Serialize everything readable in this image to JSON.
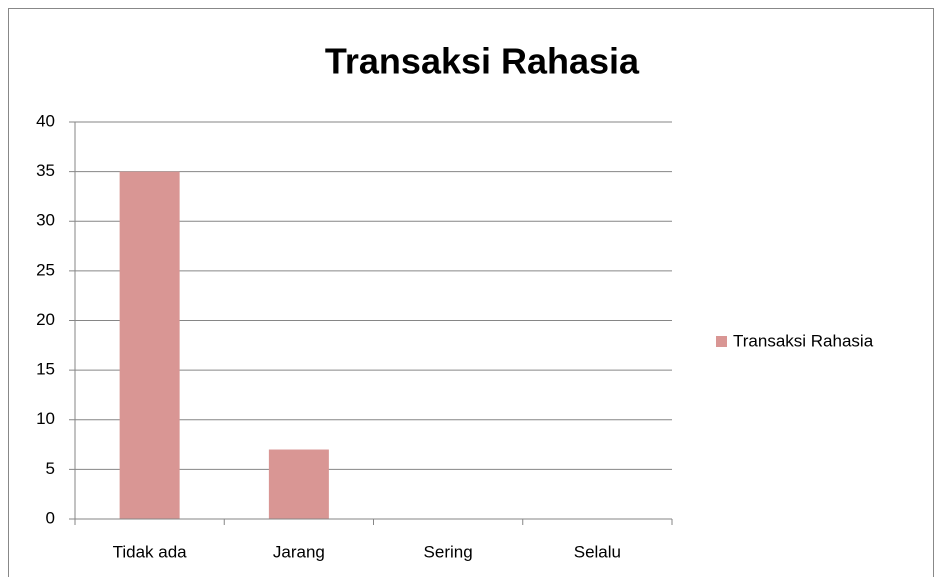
{
  "chart_data": {
    "type": "bar",
    "title": "Transaksi Rahasia",
    "categories": [
      "Tidak ada",
      "Jarang",
      "Sering",
      "Selalu"
    ],
    "series": [
      {
        "name": "Transaksi Rahasia",
        "color": "#d99694",
        "values": [
          35,
          7,
          0,
          0
        ]
      }
    ],
    "ylim": [
      0,
      40
    ],
    "yticks": [
      0,
      5,
      10,
      15,
      20,
      25,
      30,
      35,
      40
    ],
    "grid": true,
    "legend": "right"
  }
}
